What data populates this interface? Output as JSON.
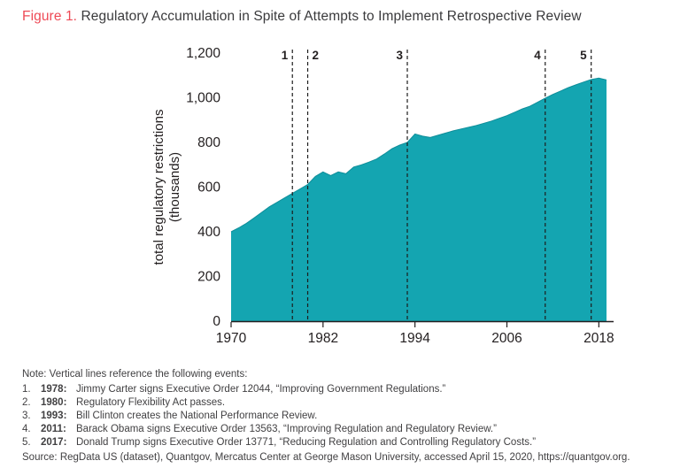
{
  "title": {
    "prefix": "Figure 1.",
    "text": " Regulatory Accumulation in Spite of Attempts to Implement Retrospective Review"
  },
  "colors": {
    "area": "#14a5b1",
    "area_edge": "#0e8d99",
    "accent_red": "#ee4a56",
    "axis": "#231f20",
    "text": "#414042"
  },
  "chart_data": {
    "type": "area",
    "title": "Regulatory Accumulation in Spite of Attempts to Implement Retrospective Review",
    "ylabel": "total regulatory restrictions (thousands)",
    "ylabel_lines": [
      "total regulatory restrictions",
      "(thousands)"
    ],
    "xlabel": "",
    "ylim": [
      0,
      1200
    ],
    "yticks": [
      0,
      200,
      400,
      600,
      800,
      1000,
      1200
    ],
    "ytick_labels": [
      "0",
      "200",
      "400",
      "600",
      "800",
      "1,000",
      "1,200"
    ],
    "xticks": [
      1970,
      1982,
      1994,
      2006,
      2018
    ],
    "xtick_labels": [
      "1970",
      "1982",
      "1994",
      "2006",
      "2018"
    ],
    "x": [
      1970,
      1971,
      1972,
      1973,
      1974,
      1975,
      1976,
      1977,
      1978,
      1979,
      1980,
      1981,
      1982,
      1983,
      1984,
      1985,
      1986,
      1987,
      1988,
      1989,
      1990,
      1991,
      1992,
      1993,
      1994,
      1995,
      1996,
      1997,
      1998,
      1999,
      2000,
      2001,
      2002,
      2003,
      2004,
      2005,
      2006,
      2007,
      2008,
      2009,
      2010,
      2011,
      2012,
      2013,
      2014,
      2015,
      2016,
      2017,
      2018,
      2019
    ],
    "values": [
      400,
      418,
      438,
      462,
      487,
      512,
      532,
      552,
      572,
      592,
      612,
      648,
      668,
      652,
      668,
      660,
      690,
      700,
      712,
      726,
      748,
      772,
      788,
      800,
      838,
      828,
      822,
      832,
      842,
      852,
      860,
      868,
      876,
      886,
      896,
      908,
      920,
      935,
      950,
      962,
      980,
      998,
      1015,
      1030,
      1045,
      1058,
      1070,
      1082,
      1088,
      1080
    ],
    "events": [
      {
        "num": "1",
        "year": 1978,
        "side": "left"
      },
      {
        "num": "2",
        "year": 1980,
        "side": "right"
      },
      {
        "num": "3",
        "year": 1993,
        "side": "left"
      },
      {
        "num": "4",
        "year": 2011,
        "side": "left"
      },
      {
        "num": "5",
        "year": 2017,
        "side": "left"
      }
    ],
    "grid": false,
    "legend": "none"
  },
  "notes": {
    "intro": "Note: Vertical lines reference the following events:",
    "items": [
      {
        "num": "1.",
        "year": "1978:",
        "text": "Jimmy Carter signs Executive Order 12044, “Improving Government Regulations.”"
      },
      {
        "num": "2.",
        "year": "1980:",
        "text": "Regulatory Flexibility Act passes."
      },
      {
        "num": "3.",
        "year": "1993:",
        "text": "Bill Clinton creates the National Performance Review."
      },
      {
        "num": "4.",
        "year": "2011:",
        "text": "Barack Obama signs Executive Order 13563, “Improving Regulation and Regulatory Review.”"
      },
      {
        "num": "5.",
        "year": "2017:",
        "text": "Donald Trump signs Executive Order 13771, “Reducing Regulation and Controlling Regulatory Costs.”"
      }
    ],
    "source": "Source: RegData US (dataset), Quantgov, Mercatus Center at George Mason University, accessed April 15, 2020, https://quantgov.org."
  }
}
